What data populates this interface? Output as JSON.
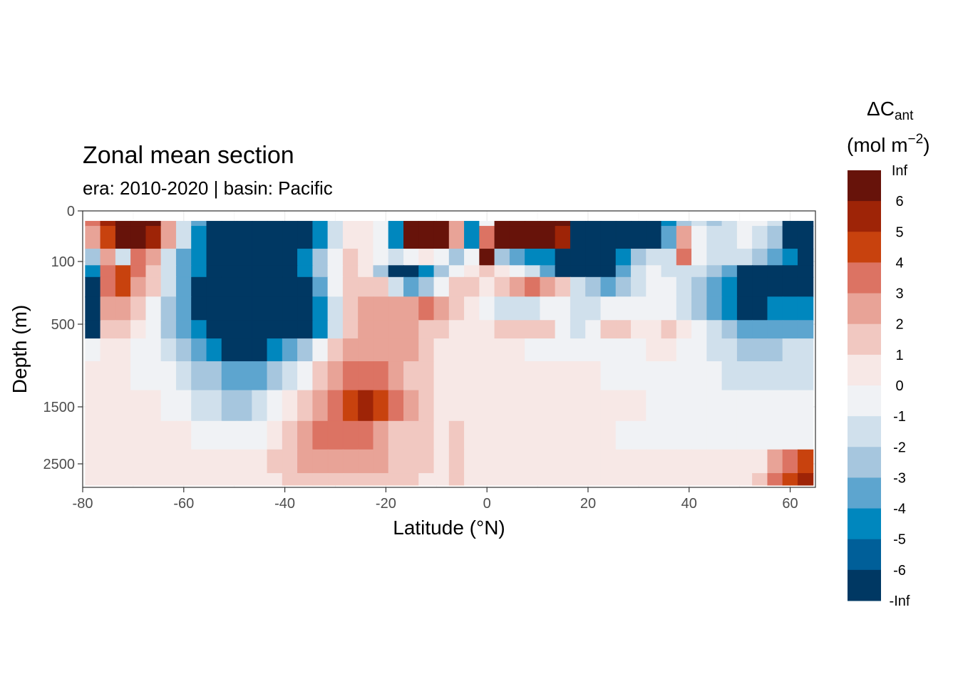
{
  "chart_data": {
    "type": "heatmap",
    "subtype": "filled-contour section",
    "title": "Zonal mean section",
    "subtitle": "era:  2010-2020 | basin: Pacific",
    "xlabel": "Latitude (°N)",
    "ylabel": "Depth (m)",
    "xlim": [
      -80,
      65
    ],
    "x_ticks": [
      -80,
      -60,
      -40,
      -20,
      0,
      20,
      40,
      60
    ],
    "y_ticks": [
      0,
      100,
      500,
      1500,
      2500
    ],
    "y_scale": "reversed, non-linear (depth)",
    "grid": true,
    "legend": {
      "position": "right",
      "title_main": "ΔC",
      "title_sub": "ant",
      "unit_prefix": "(mol m",
      "unit_sup": "−2",
      "unit_suffix": ")",
      "labels": [
        "Inf",
        "6",
        "5",
        "4",
        "3",
        "2",
        "1",
        "0",
        "-1",
        "-2",
        "-3",
        "-4",
        "-5",
        "-6",
        "-Inf"
      ],
      "colors": [
        "#67130a",
        "#9e2407",
        "#c8420e",
        "#dc7363",
        "#e8a397",
        "#f1c8c1",
        "#f7e8e6",
        "#f0f2f5",
        "#d0e0ec",
        "#a6c6de",
        "#5da5cf",
        "#0087be",
        "#005f99",
        "#003863"
      ]
    },
    "grid_x": [
      -78,
      -75,
      -72,
      -69,
      -66,
      -63,
      -60,
      -57,
      -54,
      -51,
      -48,
      -45,
      -42,
      -39,
      -36,
      -33,
      -30,
      -27,
      -24,
      -21,
      -18,
      -15,
      -12,
      -9,
      -6,
      -3,
      0,
      3,
      6,
      9,
      12,
      15,
      18,
      21,
      24,
      27,
      30,
      33,
      36,
      39,
      42,
      45,
      48,
      51,
      54,
      57,
      60,
      63
    ],
    "grid_depth": [
      10,
      50,
      100,
      150,
      250,
      400,
      550,
      800,
      1100,
      1500,
      2000,
      2500,
      2900
    ],
    "values": [
      [
        3,
        5,
        7,
        7,
        7,
        2,
        -2,
        -4,
        -7,
        -7,
        -7,
        -7,
        -7,
        -7,
        -7,
        -5,
        -2,
        0,
        0,
        -1,
        -5,
        6,
        7,
        7,
        2,
        -5,
        -1,
        7,
        7,
        7,
        7,
        6,
        -7,
        -7,
        -7,
        -7,
        -7,
        -7,
        -5,
        -3,
        -2,
        -3,
        -2,
        -1,
        -1,
        -2,
        -7,
        -7
      ],
      [
        2,
        4,
        6,
        6,
        5,
        2,
        -2,
        -5,
        -7,
        -7,
        -7,
        -7,
        -7,
        -7,
        -7,
        -5,
        -2,
        0,
        0,
        -1,
        -5,
        6,
        7,
        6,
        2,
        -5,
        3,
        7,
        7,
        7,
        7,
        5,
        -7,
        -7,
        -7,
        -7,
        -7,
        -6,
        -4,
        2,
        -1,
        -2,
        -2,
        -1,
        -2,
        -3,
        -6,
        -7
      ],
      [
        -3,
        2,
        -2,
        3,
        2,
        -2,
        -4,
        -5,
        -7,
        -7,
        -7,
        -7,
        -7,
        -7,
        -5,
        -3,
        -1,
        1,
        0,
        -1,
        -2,
        -1,
        0,
        -1,
        -3,
        -1,
        6,
        -3,
        -4,
        -5,
        -5,
        -6,
        -6,
        -7,
        -7,
        -5,
        -3,
        -2,
        -2,
        3,
        -1,
        -2,
        -2,
        -2,
        -3,
        -4,
        -5,
        -6
      ],
      [
        -5,
        3,
        4,
        3,
        1,
        -2,
        -4,
        -5,
        -7,
        -7,
        -7,
        -7,
        -7,
        -7,
        -5,
        -3,
        -1,
        1,
        0,
        -3,
        -6,
        -7,
        -5,
        -3,
        -1,
        0,
        1,
        0,
        -1,
        -2,
        -4,
        -6,
        -7,
        -7,
        -6,
        -4,
        -2,
        -1,
        -2,
        -2,
        -2,
        -3,
        -4,
        -6,
        -7,
        -7,
        -7,
        -6
      ],
      [
        -6,
        3,
        4,
        2,
        1,
        -2,
        -4,
        -6,
        -7,
        -7,
        -7,
        -7,
        -7,
        -7,
        -6,
        -4,
        -1,
        1,
        1,
        1,
        -2,
        -4,
        -3,
        -1,
        1,
        1,
        0,
        1,
        2,
        3,
        2,
        1,
        -2,
        -3,
        -4,
        -3,
        -2,
        -1,
        -1,
        -2,
        -3,
        -4,
        -5,
        -6,
        -7,
        -7,
        -7,
        -6
      ],
      [
        -7,
        2,
        2,
        1,
        -1,
        -3,
        -4,
        -6,
        -7,
        -7,
        -7,
        -7,
        -7,
        -7,
        -7,
        -5,
        -2,
        1,
        2,
        2,
        2,
        2,
        3,
        2,
        1,
        0,
        -1,
        -2,
        -2,
        -2,
        -1,
        -1,
        -2,
        -2,
        -1,
        -1,
        -1,
        -1,
        -1,
        -2,
        -3,
        -4,
        -5,
        -6,
        -6,
        -5,
        -5,
        -5
      ],
      [
        -6,
        1,
        1,
        0,
        -1,
        -3,
        -4,
        -5,
        -6,
        -7,
        -7,
        -7,
        -7,
        -7,
        -7,
        -5,
        -2,
        1,
        2,
        2,
        2,
        2,
        1,
        1,
        0,
        0,
        0,
        1,
        1,
        1,
        1,
        -1,
        -2,
        -1,
        1,
        1,
        0,
        0,
        1,
        0,
        -1,
        -2,
        -3,
        -4,
        -4,
        -4,
        -4,
        -4
      ],
      [
        -1,
        0,
        0,
        -1,
        -1,
        -2,
        -3,
        -4,
        -5,
        -6,
        -6,
        -6,
        -5,
        -4,
        -3,
        -1,
        1,
        2,
        2,
        2,
        2,
        2,
        1,
        0,
        0,
        0,
        0,
        0,
        0,
        -1,
        -1,
        -1,
        -1,
        -1,
        -1,
        -1,
        -1,
        0,
        0,
        -1,
        -1,
        -2,
        -2,
        -3,
        -3,
        -3,
        -2,
        -2
      ],
      [
        0,
        0,
        0,
        -1,
        -1,
        -1,
        -2,
        -3,
        -3,
        -4,
        -4,
        -4,
        -3,
        -2,
        -1,
        1,
        2,
        3,
        3,
        3,
        2,
        1,
        1,
        0,
        0,
        0,
        0,
        0,
        0,
        0,
        0,
        0,
        0,
        0,
        -1,
        -1,
        -1,
        -1,
        -1,
        -1,
        -1,
        -1,
        -2,
        -2,
        -2,
        -2,
        -2,
        -2
      ],
      [
        0,
        0,
        0,
        0,
        0,
        -1,
        -1,
        -2,
        -2,
        -3,
        -3,
        -2,
        -1,
        0,
        1,
        2,
        3,
        4,
        5,
        4,
        3,
        2,
        1,
        0,
        0,
        0,
        0,
        0,
        0,
        0,
        0,
        0,
        0,
        0,
        0,
        0,
        0,
        -1,
        -1,
        -1,
        -1,
        -1,
        -1,
        -1,
        -1,
        -1,
        -1,
        -1
      ],
      [
        0,
        0,
        0,
        0,
        0,
        0,
        0,
        -1,
        -1,
        -1,
        -1,
        -1,
        0,
        1,
        2,
        3,
        3,
        3,
        3,
        2,
        1,
        1,
        1,
        0,
        1,
        0,
        0,
        0,
        0,
        0,
        0,
        0,
        0,
        0,
        0,
        -1,
        -1,
        -1,
        -1,
        -1,
        -1,
        -1,
        -1,
        -1,
        -1,
        -1,
        -1,
        -1
      ],
      [
        0,
        0,
        0,
        0,
        0,
        0,
        0,
        0,
        0,
        0,
        0,
        0,
        1,
        1,
        2,
        2,
        2,
        2,
        2,
        2,
        1,
        1,
        1,
        0,
        1,
        0,
        0,
        0,
        0,
        0,
        0,
        0,
        0,
        0,
        0,
        0,
        0,
        0,
        0,
        0,
        0,
        0,
        0,
        0,
        0,
        2,
        3,
        4
      ],
      [
        0,
        0,
        0,
        0,
        0,
        0,
        0,
        0,
        0,
        0,
        0,
        0,
        0,
        1,
        1,
        1,
        1,
        1,
        1,
        1,
        1,
        1,
        0,
        0,
        1,
        0,
        0,
        0,
        0,
        0,
        0,
        0,
        0,
        0,
        0,
        0,
        0,
        0,
        0,
        0,
        0,
        0,
        0,
        0,
        1,
        3,
        4,
        5
      ]
    ]
  }
}
